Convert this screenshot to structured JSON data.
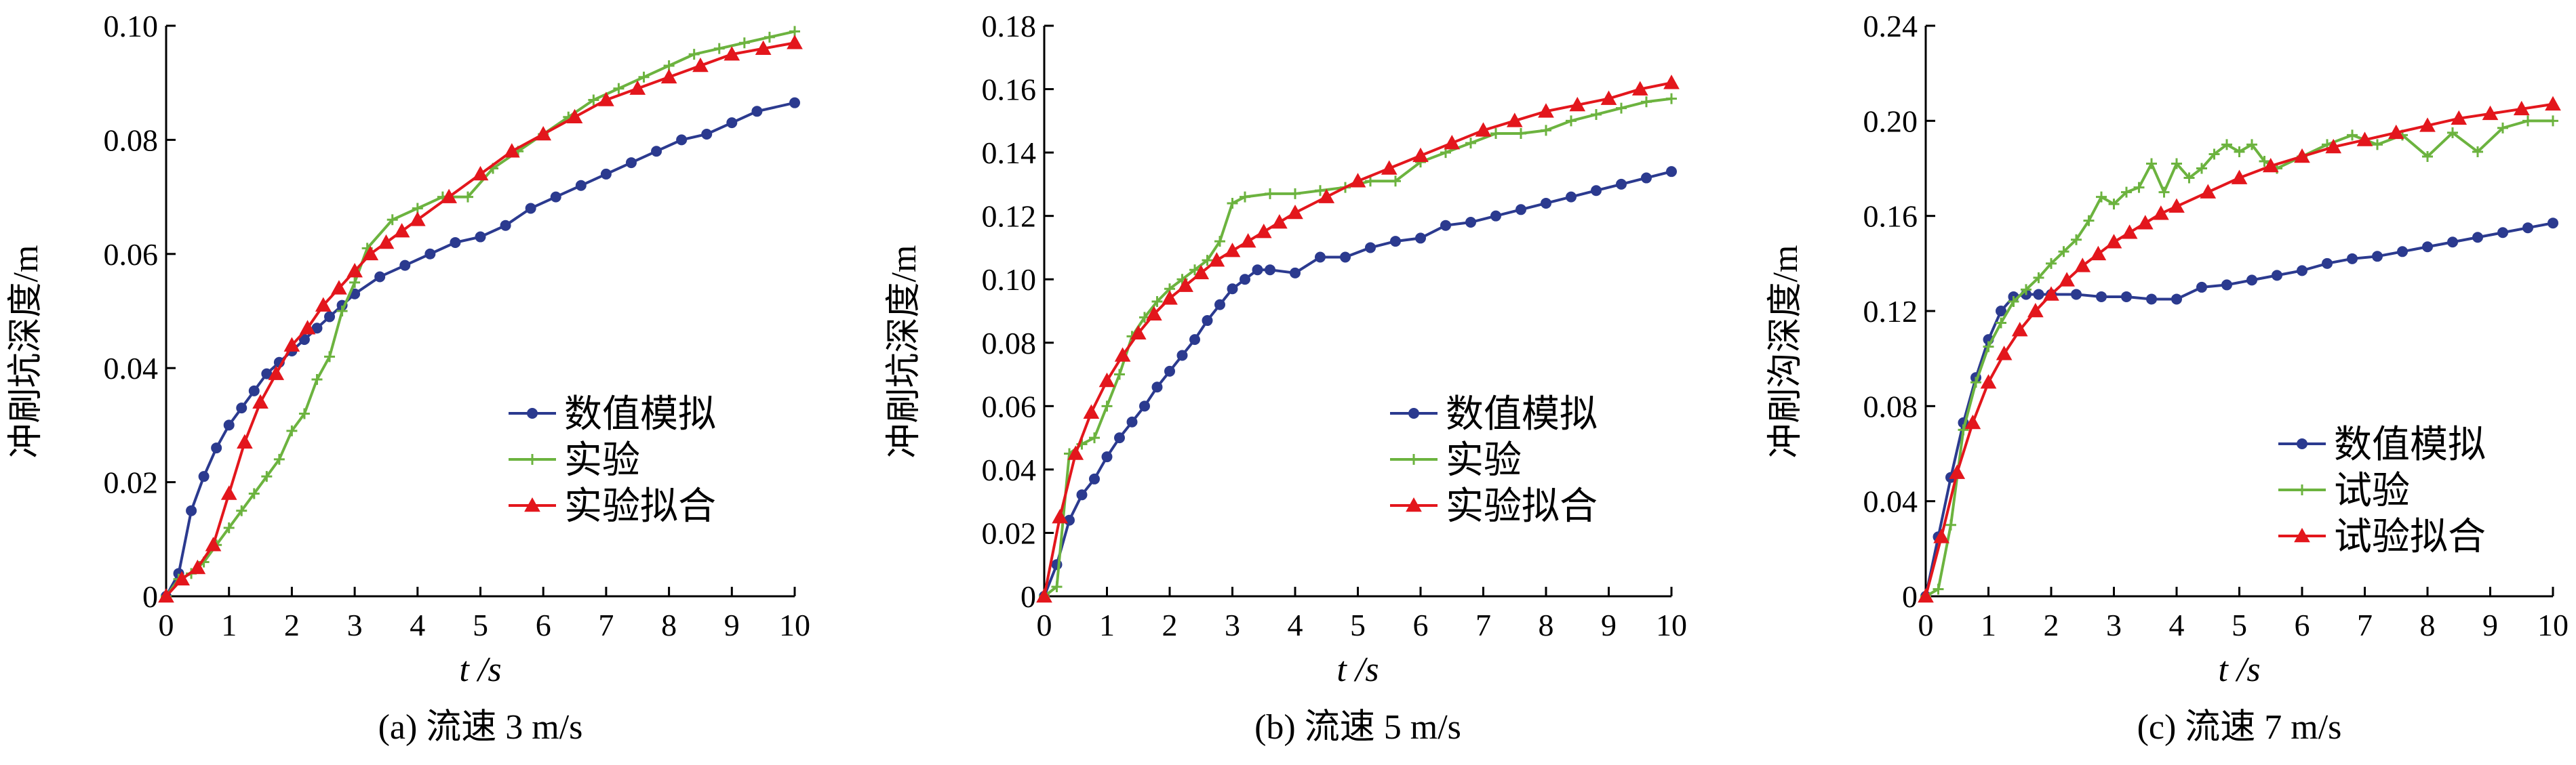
{
  "colors": {
    "numerical": "#2b3a8f",
    "experiment": "#6cb33f",
    "fit": "#e3161c",
    "axis": "#000000"
  },
  "chart_data": [
    {
      "type": "line",
      "caption": "(a)  流速 3 m/s",
      "xlabel": "t /s",
      "ylabel": "冲刷坑深度/m",
      "xlim": [
        0,
        10
      ],
      "ylim": [
        0,
        0.1
      ],
      "xticks": [
        0,
        1,
        2,
        3,
        4,
        5,
        6,
        7,
        8,
        9,
        10
      ],
      "xtick_labels": [
        "0",
        "1",
        "2",
        "3",
        "4",
        "5",
        "6",
        "7",
        "8",
        "9",
        "10"
      ],
      "yticks": [
        0,
        0.02,
        0.04,
        0.06,
        0.08,
        0.1
      ],
      "ytick_labels": [
        "0",
        "0.02",
        "0.04",
        "0.06",
        "0.08",
        "0.10"
      ],
      "legend_position": "lower-right",
      "series": [
        {
          "name": "数值模拟",
          "color_key": "numerical",
          "marker": "circle",
          "x": [
            0,
            0.2,
            0.4,
            0.6,
            0.8,
            1,
            1.2,
            1.4,
            1.6,
            1.8,
            2,
            2.2,
            2.4,
            2.6,
            2.8,
            3,
            3.4,
            3.8,
            4.2,
            4.6,
            5,
            5.4,
            5.8,
            6.2,
            6.6,
            7,
            7.4,
            7.8,
            8.2,
            8.6,
            9,
            9.4,
            10
          ],
          "values": [
            0,
            0.004,
            0.015,
            0.021,
            0.026,
            0.03,
            0.033,
            0.036,
            0.039,
            0.041,
            0.043,
            0.045,
            0.047,
            0.049,
            0.051,
            0.053,
            0.056,
            0.058,
            0.06,
            0.062,
            0.063,
            0.065,
            0.068,
            0.07,
            0.072,
            0.074,
            0.076,
            0.078,
            0.08,
            0.081,
            0.083,
            0.085,
            0.0865
          ]
        },
        {
          "name": "实验",
          "color_key": "experiment",
          "marker": "plus",
          "x": [
            0,
            0.2,
            0.4,
            0.6,
            0.8,
            1,
            1.2,
            1.4,
            1.6,
            1.8,
            2,
            2.2,
            2.4,
            2.6,
            2.8,
            3,
            3.2,
            3.6,
            4,
            4.4,
            4.8,
            5.2,
            5.6,
            6,
            6.4,
            6.8,
            7.2,
            7.6,
            8,
            8.4,
            8.8,
            9.2,
            9.6,
            10
          ],
          "values": [
            0,
            0.003,
            0.004,
            0.006,
            0.009,
            0.012,
            0.015,
            0.018,
            0.021,
            0.024,
            0.029,
            0.032,
            0.038,
            0.042,
            0.05,
            0.055,
            0.061,
            0.066,
            0.068,
            0.07,
            0.07,
            0.075,
            0.078,
            0.081,
            0.084,
            0.087,
            0.089,
            0.091,
            0.093,
            0.095,
            0.096,
            0.097,
            0.098,
            0.099
          ]
        },
        {
          "name": "实验拟合",
          "color_key": "fit",
          "marker": "triangle",
          "x": [
            0,
            0.25,
            0.5,
            0.75,
            1,
            1.25,
            1.5,
            1.75,
            2,
            2.25,
            2.5,
            2.75,
            3,
            3.25,
            3.5,
            3.75,
            4,
            4.5,
            5,
            5.5,
            6,
            6.5,
            7,
            7.5,
            8,
            8.5,
            9,
            9.5,
            10
          ],
          "values": [
            0,
            0.003,
            0.005,
            0.009,
            0.018,
            0.027,
            0.034,
            0.039,
            0.044,
            0.047,
            0.051,
            0.054,
            0.057,
            0.06,
            0.062,
            0.064,
            0.066,
            0.07,
            0.074,
            0.078,
            0.081,
            0.084,
            0.087,
            0.089,
            0.091,
            0.093,
            0.095,
            0.096,
            0.097
          ]
        }
      ]
    },
    {
      "type": "line",
      "caption": "(b)  流速 5 m/s",
      "xlabel": "t /s",
      "ylabel": "冲刷坑深度/m",
      "xlim": [
        0,
        10
      ],
      "ylim": [
        0,
        0.18
      ],
      "xticks": [
        0,
        1,
        2,
        3,
        4,
        5,
        6,
        7,
        8,
        9,
        10
      ],
      "xtick_labels": [
        "0",
        "1",
        "2",
        "3",
        "4",
        "5",
        "6",
        "7",
        "8",
        "9",
        "10"
      ],
      "yticks": [
        0,
        0.02,
        0.04,
        0.06,
        0.08,
        0.1,
        0.12,
        0.14,
        0.16,
        0.18
      ],
      "ytick_labels": [
        "0",
        "0.02",
        "0.04",
        "0.06",
        "0.08",
        "0.10",
        "0.12",
        "0.14",
        "0.16",
        "0.18"
      ],
      "legend_position": "lower-right",
      "series": [
        {
          "name": "数值模拟",
          "color_key": "numerical",
          "marker": "circle",
          "x": [
            0,
            0.2,
            0.4,
            0.6,
            0.8,
            1,
            1.2,
            1.4,
            1.6,
            1.8,
            2,
            2.2,
            2.4,
            2.6,
            2.8,
            3,
            3.2,
            3.4,
            3.6,
            4,
            4.4,
            4.8,
            5.2,
            5.6,
            6,
            6.4,
            6.8,
            7.2,
            7.6,
            8,
            8.4,
            8.8,
            9.2,
            9.6,
            10
          ],
          "values": [
            0,
            0.01,
            0.024,
            0.032,
            0.037,
            0.044,
            0.05,
            0.055,
            0.06,
            0.066,
            0.071,
            0.076,
            0.081,
            0.087,
            0.092,
            0.097,
            0.1,
            0.103,
            0.103,
            0.102,
            0.107,
            0.107,
            0.11,
            0.112,
            0.113,
            0.117,
            0.118,
            0.12,
            0.122,
            0.124,
            0.126,
            0.128,
            0.13,
            0.132,
            0.134
          ]
        },
        {
          "name": "实验",
          "color_key": "experiment",
          "marker": "plus",
          "x": [
            0,
            0.2,
            0.4,
            0.6,
            0.8,
            1,
            1.2,
            1.4,
            1.6,
            1.8,
            2,
            2.2,
            2.4,
            2.6,
            2.8,
            3,
            3.2,
            3.6,
            4,
            4.4,
            4.8,
            5.2,
            5.6,
            6,
            6.4,
            6.8,
            7.2,
            7.6,
            8,
            8.4,
            8.8,
            9.2,
            9.6,
            10
          ],
          "values": [
            0,
            0.003,
            0.045,
            0.048,
            0.05,
            0.06,
            0.07,
            0.082,
            0.088,
            0.093,
            0.097,
            0.1,
            0.103,
            0.106,
            0.112,
            0.124,
            0.126,
            0.127,
            0.127,
            0.128,
            0.129,
            0.131,
            0.131,
            0.137,
            0.14,
            0.143,
            0.146,
            0.146,
            0.147,
            0.15,
            0.152,
            0.154,
            0.156,
            0.157
          ]
        },
        {
          "name": "实验拟合",
          "color_key": "fit",
          "marker": "triangle",
          "x": [
            0,
            0.25,
            0.5,
            0.75,
            1,
            1.25,
            1.5,
            1.75,
            2,
            2.25,
            2.5,
            2.75,
            3,
            3.25,
            3.5,
            3.75,
            4,
            4.5,
            5,
            5.5,
            6,
            6.5,
            7,
            7.5,
            8,
            8.5,
            9,
            9.5,
            10
          ],
          "values": [
            0,
            0.025,
            0.045,
            0.058,
            0.068,
            0.076,
            0.083,
            0.089,
            0.094,
            0.098,
            0.102,
            0.106,
            0.109,
            0.112,
            0.115,
            0.118,
            0.121,
            0.126,
            0.131,
            0.135,
            0.139,
            0.143,
            0.147,
            0.15,
            0.153,
            0.155,
            0.157,
            0.16,
            0.162
          ]
        }
      ]
    },
    {
      "type": "line",
      "caption": "(c)  流速 7 m/s",
      "xlabel": "t /s",
      "ylabel": "冲刷沟深度/m",
      "xlim": [
        0,
        10
      ],
      "ylim": [
        0,
        0.24
      ],
      "xticks": [
        0,
        1,
        2,
        3,
        4,
        5,
        6,
        7,
        8,
        9,
        10
      ],
      "xtick_labels": [
        "0",
        "1",
        "2",
        "3",
        "4",
        "5",
        "6",
        "7",
        "8",
        "9",
        "10"
      ],
      "yticks": [
        0,
        0.04,
        0.08,
        0.12,
        0.16,
        0.2,
        0.24
      ],
      "ytick_labels": [
        "0",
        "0.04",
        "0.08",
        "0.12",
        "0.16",
        "0.20",
        "0.24"
      ],
      "legend_position": "lower-right",
      "series": [
        {
          "name": "数值模拟",
          "color_key": "numerical",
          "marker": "circle",
          "x": [
            0,
            0.2,
            0.4,
            0.6,
            0.8,
            1,
            1.2,
            1.4,
            1.6,
            1.8,
            2,
            2.4,
            2.8,
            3.2,
            3.6,
            4,
            4.4,
            4.8,
            5.2,
            5.6,
            6,
            6.4,
            6.8,
            7.2,
            7.6,
            8,
            8.4,
            8.8,
            9.2,
            9.6,
            10
          ],
          "values": [
            0,
            0.025,
            0.05,
            0.073,
            0.092,
            0.108,
            0.12,
            0.126,
            0.127,
            0.127,
            0.127,
            0.127,
            0.126,
            0.126,
            0.125,
            0.125,
            0.13,
            0.131,
            0.133,
            0.135,
            0.137,
            0.14,
            0.142,
            0.143,
            0.145,
            0.147,
            0.149,
            0.151,
            0.153,
            0.155,
            0.157
          ]
        },
        {
          "name": "试验",
          "color_key": "experiment",
          "marker": "plus",
          "x": [
            0,
            0.2,
            0.4,
            0.6,
            0.8,
            1,
            1.2,
            1.4,
            1.6,
            1.8,
            2,
            2.2,
            2.4,
            2.6,
            2.8,
            3,
            3.2,
            3.4,
            3.6,
            3.8,
            4,
            4.2,
            4.4,
            4.6,
            4.8,
            5,
            5.2,
            5.4,
            5.6,
            6,
            6.4,
            6.8,
            7.2,
            7.6,
            8,
            8.4,
            8.8,
            9.2,
            9.6,
            10
          ],
          "values": [
            0,
            0.003,
            0.03,
            0.07,
            0.09,
            0.105,
            0.115,
            0.124,
            0.129,
            0.134,
            0.14,
            0.145,
            0.15,
            0.158,
            0.168,
            0.165,
            0.17,
            0.172,
            0.182,
            0.17,
            0.182,
            0.176,
            0.18,
            0.186,
            0.19,
            0.187,
            0.19,
            0.183,
            0.18,
            0.185,
            0.19,
            0.194,
            0.19,
            0.194,
            0.185,
            0.195,
            0.187,
            0.197,
            0.2,
            0.2
          ]
        },
        {
          "name": "试验拟合",
          "color_key": "fit",
          "marker": "triangle",
          "x": [
            0,
            0.25,
            0.5,
            0.75,
            1,
            1.25,
            1.5,
            1.75,
            2,
            2.25,
            2.5,
            2.75,
            3,
            3.25,
            3.5,
            3.75,
            4,
            4.5,
            5,
            5.5,
            6,
            6.5,
            7,
            7.5,
            8,
            8.5,
            9,
            9.5,
            10
          ],
          "values": [
            0,
            0.025,
            0.052,
            0.073,
            0.09,
            0.102,
            0.112,
            0.12,
            0.127,
            0.133,
            0.139,
            0.144,
            0.149,
            0.153,
            0.157,
            0.161,
            0.164,
            0.17,
            0.176,
            0.181,
            0.185,
            0.189,
            0.192,
            0.195,
            0.198,
            0.201,
            0.203,
            0.205,
            0.207
          ]
        }
      ]
    }
  ]
}
